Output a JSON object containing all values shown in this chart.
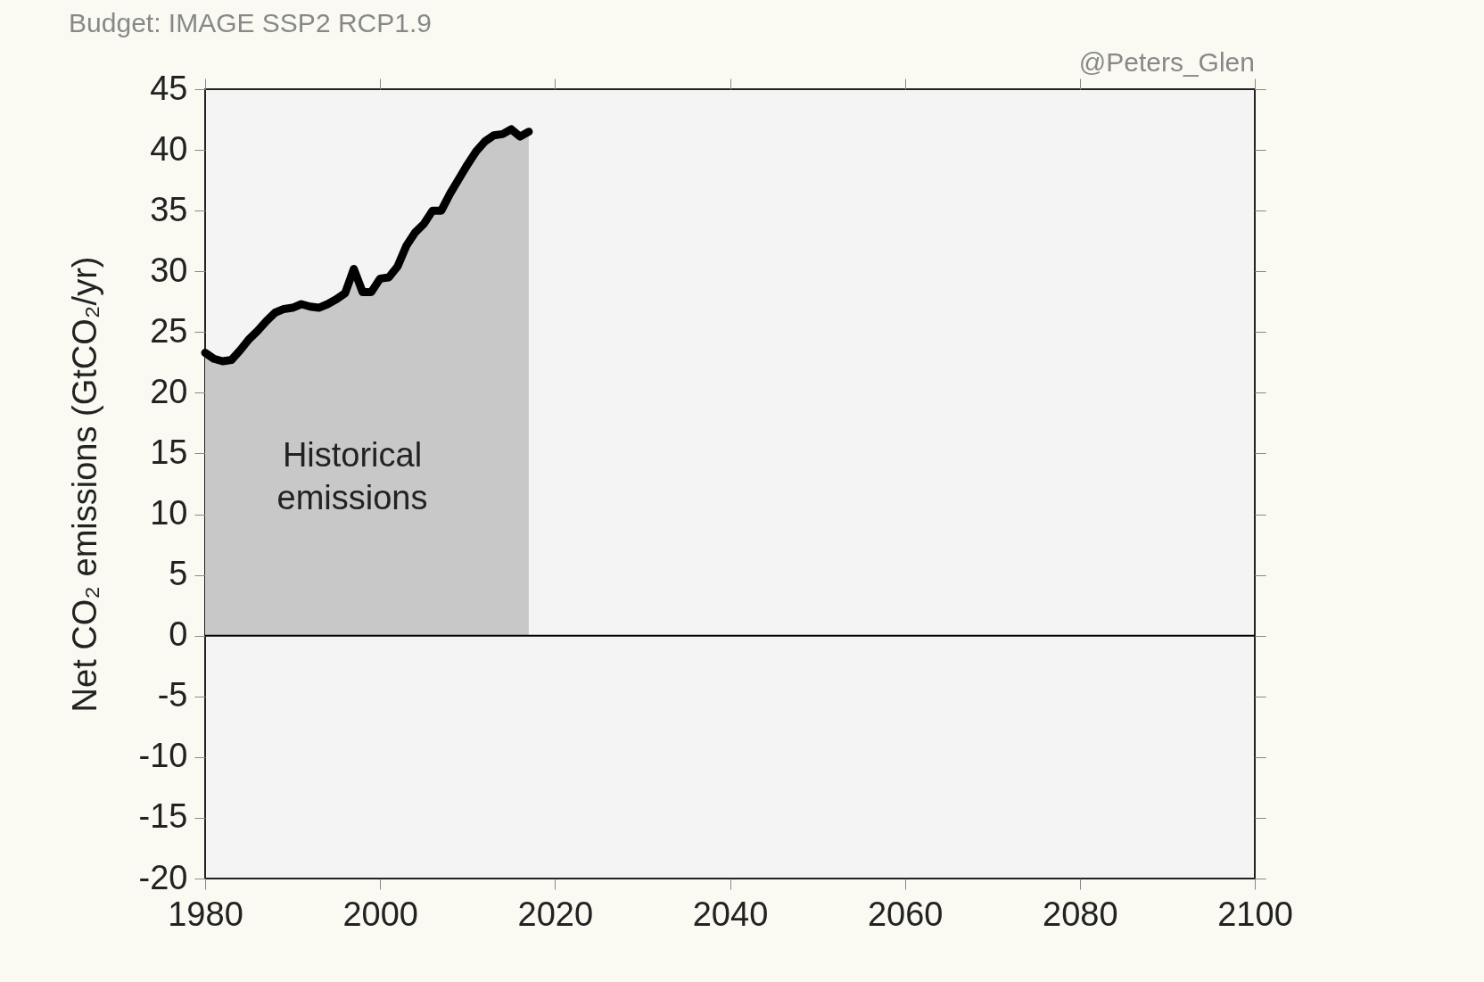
{
  "chart_data": {
    "type": "area",
    "title": "Budget: IMAGE SSP2 RCP1.9",
    "ylabel": "Net CO₂ emissions (GtCO₂/yr)",
    "annotations": [
      "Historical\nemissions",
      "@Peters_Glen"
    ],
    "x": [
      1980,
      1981,
      1982,
      1983,
      1984,
      1985,
      1986,
      1987,
      1988,
      1989,
      1990,
      1991,
      1992,
      1993,
      1994,
      1995,
      1996,
      1997,
      1998,
      1999,
      2000,
      2001,
      2002,
      2003,
      2004,
      2005,
      2006,
      2007,
      2008,
      2009,
      2010,
      2011,
      2012,
      2013,
      2014,
      2015,
      2016,
      2017
    ],
    "series": [
      {
        "color": "#c8c8c8",
        "values": [
          23.3,
          22.8,
          22.6,
          22.7,
          23.5,
          24.4,
          25.1,
          25.9,
          26.6,
          26.9,
          27.0,
          27.3,
          27.1,
          27.0,
          27.3,
          27.7,
          28.2,
          30.2,
          28.3,
          28.3,
          29.4,
          29.5,
          30.4,
          32.1,
          33.2,
          33.9,
          35.0,
          35.0,
          36.4,
          37.6,
          38.8,
          39.9,
          40.7,
          41.2,
          41.3,
          41.7,
          41.1,
          41.5
        ]
      }
    ],
    "xlim": [
      1980,
      2100
    ],
    "xticks": [
      1980,
      2000,
      2020,
      2040,
      2060,
      2080,
      2100
    ],
    "ylim": [
      -20,
      45
    ],
    "yticks": [
      -20,
      -15,
      -10,
      -5,
      0,
      5,
      10,
      15,
      20,
      25,
      30,
      35,
      40,
      45
    ],
    "ref_lines": [
      {
        "axis": "y",
        "value": 0,
        "color": "#000000"
      }
    ],
    "grid": false
  }
}
